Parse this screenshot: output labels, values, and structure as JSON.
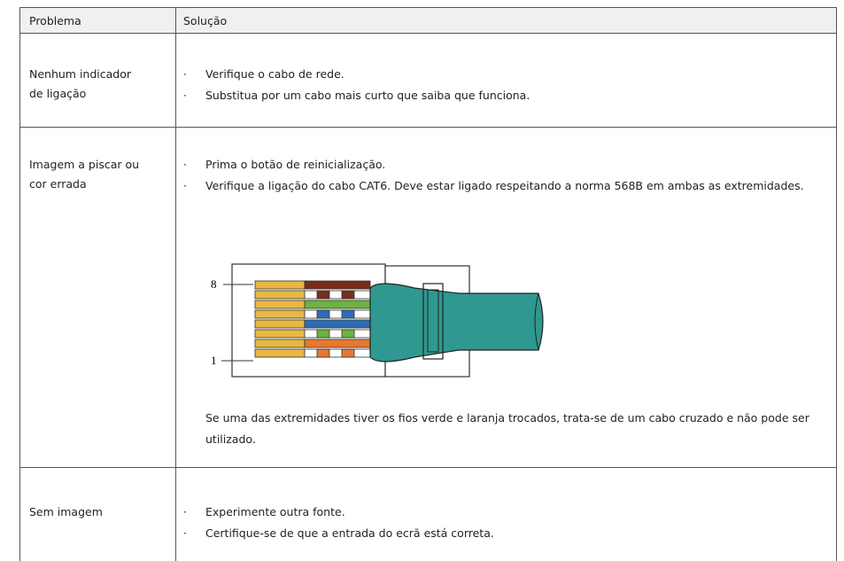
{
  "table": {
    "header": [
      "Problema",
      "Solução"
    ],
    "rows": [
      {
        "problem": [
          "Nenhum indicador",
          "de ligação"
        ],
        "solutions": [
          "Verifique o cabo de rede.",
          "Substitua por um cabo mais curto que saiba que funciona."
        ]
      },
      {
        "problem": [
          "Imagem a piscar ou",
          "cor errada"
        ],
        "solutions": [
          "Prima o botão de reinicialização.",
          "Verifique a ligação do cabo CAT6. Deve estar ligado respeitando a norma 568B em ambas as extremidades."
        ],
        "figure_labels": [
          "8",
          "1"
        ],
        "note": "Se uma das extremidades tiver os fios verde e laranja trocados, trata-se de um cabo cruzado e não pode ser utilizado."
      },
      {
        "problem": [
          "Sem imagem"
        ],
        "solutions": [
          "Experimente outra fonte.",
          "Certifique-se de que a entrada do ecrã está correta."
        ]
      }
    ]
  }
}
